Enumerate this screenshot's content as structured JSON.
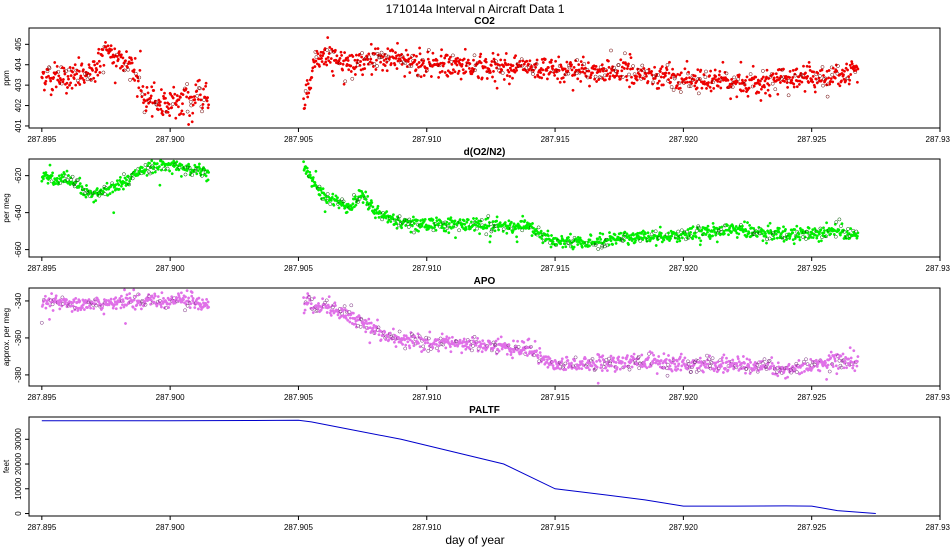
{
  "figure": {
    "title": "171014a   Interval n Aircraft Data 1",
    "xlabel": "day of year"
  },
  "chart_data": [
    {
      "type": "scatter",
      "title": "CO2",
      "ylabel": "ppm",
      "color": "#ee0000",
      "edge_color": "#6b0000",
      "xlim": [
        287.8945,
        287.93
      ],
      "ylim": [
        400.9,
        405.8
      ],
      "xticks": [
        287.895,
        287.9,
        287.905,
        287.91,
        287.915,
        287.92,
        287.925,
        287.93
      ],
      "xtick_labels": [
        "287.895",
        "287.900",
        "287.905",
        "287.910",
        "287.915",
        "287.920",
        "287.925",
        "287.930"
      ],
      "yticks": [
        401,
        402,
        403,
        404,
        405
      ],
      "ytick_labels": [
        "401",
        "402",
        "403",
        "404",
        "405"
      ],
      "segments": [
        {
          "x": [
            287.895,
            287.896,
            287.897,
            287.8975,
            287.898,
            287.8985,
            287.899,
            287.8995,
            287.9,
            287.9005,
            287.901,
            287.9015
          ],
          "y": [
            403.5,
            403.3,
            403.7,
            404.6,
            404.3,
            404.0,
            402.3,
            402.1,
            402.0,
            402.3,
            402.4,
            402.3
          ],
          "scatter": 0.35
        },
        {
          "x": [
            287.9052,
            287.9055,
            287.9057,
            287.906,
            287.907,
            287.908,
            287.909,
            287.91,
            287.912,
            287.914,
            287.916,
            287.918,
            287.92,
            287.922,
            287.924,
            287.926,
            287.9268
          ],
          "y": [
            402.0,
            403.5,
            404.3,
            404.5,
            404.0,
            404.3,
            404.2,
            404.0,
            403.9,
            403.8,
            403.7,
            403.6,
            403.3,
            403.1,
            403.3,
            403.4,
            403.7
          ],
          "scatter": 0.3
        }
      ]
    },
    {
      "type": "scatter",
      "title": "d(O2/N2)",
      "ylabel": "per meg",
      "color": "#00ee00",
      "edge_color": "#005500",
      "xlim": [
        287.8945,
        287.93
      ],
      "ylim": [
        -664,
        -611
      ],
      "xticks": [
        287.895,
        287.9,
        287.905,
        287.91,
        287.915,
        287.92,
        287.925,
        287.93
      ],
      "xtick_labels": [
        "287.895",
        "287.900",
        "287.905",
        "287.910",
        "287.915",
        "287.920",
        "287.925",
        "287.930"
      ],
      "yticks": [
        -620,
        -640,
        -660
      ],
      "ytick_labels": [
        "-620",
        "-640",
        "-660"
      ],
      "segments": [
        {
          "x": [
            287.895,
            287.896,
            287.897,
            287.898,
            287.899,
            287.9,
            287.9015
          ],
          "y": [
            -621,
            -623,
            -630,
            -625,
            -616,
            -614,
            -618
          ],
          "scatter": 2.0
        },
        {
          "x": [
            287.9052,
            287.906,
            287.907,
            287.9075,
            287.908,
            287.909,
            287.91,
            287.912,
            287.914,
            287.915,
            287.916,
            287.918,
            287.92,
            287.922,
            287.924,
            287.926,
            287.9268
          ],
          "y": [
            -616,
            -631,
            -637,
            -630,
            -640,
            -645,
            -646,
            -647,
            -648,
            -656,
            -657,
            -653,
            -652,
            -649,
            -652,
            -650,
            -652
          ],
          "scatter": 1.8
        }
      ]
    },
    {
      "type": "scatter",
      "title": "APO",
      "ylabel": "approx. per meg",
      "color": "#e070e8",
      "edge_color": "#7a2f80",
      "xlim": [
        287.8945,
        287.93
      ],
      "ylim": [
        -386,
        -333
      ],
      "xticks": [
        287.895,
        287.9,
        287.905,
        287.91,
        287.915,
        287.92,
        287.925,
        287.93
      ],
      "xtick_labels": [
        "287.895",
        "287.900",
        "287.905",
        "287.910",
        "287.915",
        "287.920",
        "287.925",
        "287.930"
      ],
      "yticks": [
        -340,
        -360,
        -380
      ],
      "ytick_labels": [
        "-340",
        "-360",
        "-380"
      ],
      "segments": [
        {
          "x": [
            287.895,
            287.897,
            287.899,
            287.9,
            287.9015
          ],
          "y": [
            -341,
            -342,
            -340,
            -340,
            -341
          ],
          "scatter": 2.0
        },
        {
          "x": [
            287.9052,
            287.906,
            287.907,
            287.908,
            287.909,
            287.91,
            287.912,
            287.914,
            287.915,
            287.918,
            287.92,
            287.922,
            287.924,
            287.926,
            287.9268
          ],
          "y": [
            -340,
            -344,
            -348,
            -356,
            -361,
            -362,
            -364,
            -366,
            -375,
            -373,
            -374,
            -374,
            -377,
            -372,
            -374
          ],
          "scatter": 2.2
        }
      ]
    },
    {
      "type": "line",
      "title": "PALTF",
      "ylabel": "feet",
      "color": "#0000cc",
      "xlim": [
        287.8945,
        287.93
      ],
      "ylim": [
        -1000,
        39000
      ],
      "xticks": [
        287.895,
        287.9,
        287.905,
        287.91,
        287.915,
        287.92,
        287.925,
        287.93
      ],
      "xtick_labels": [
        "287.895",
        "287.900",
        "287.905",
        "287.910",
        "287.915",
        "287.920",
        "287.925",
        "287.930"
      ],
      "yticks": [
        0,
        10000,
        20000,
        30000
      ],
      "ytick_labels": [
        "0",
        "10000",
        "20000",
        "30000"
      ],
      "x": [
        287.895,
        287.898,
        287.9,
        287.903,
        287.905,
        287.9055,
        287.907,
        287.909,
        287.911,
        287.913,
        287.915,
        287.917,
        287.9185,
        287.92,
        287.922,
        287.924,
        287.925,
        287.926,
        287.9275
      ],
      "y": [
        37500,
        37500,
        37500,
        37600,
        37700,
        37000,
        34000,
        30000,
        25000,
        20000,
        10000,
        7500,
        5500,
        3000,
        3000,
        3100,
        3000,
        1200,
        0
      ]
    }
  ]
}
